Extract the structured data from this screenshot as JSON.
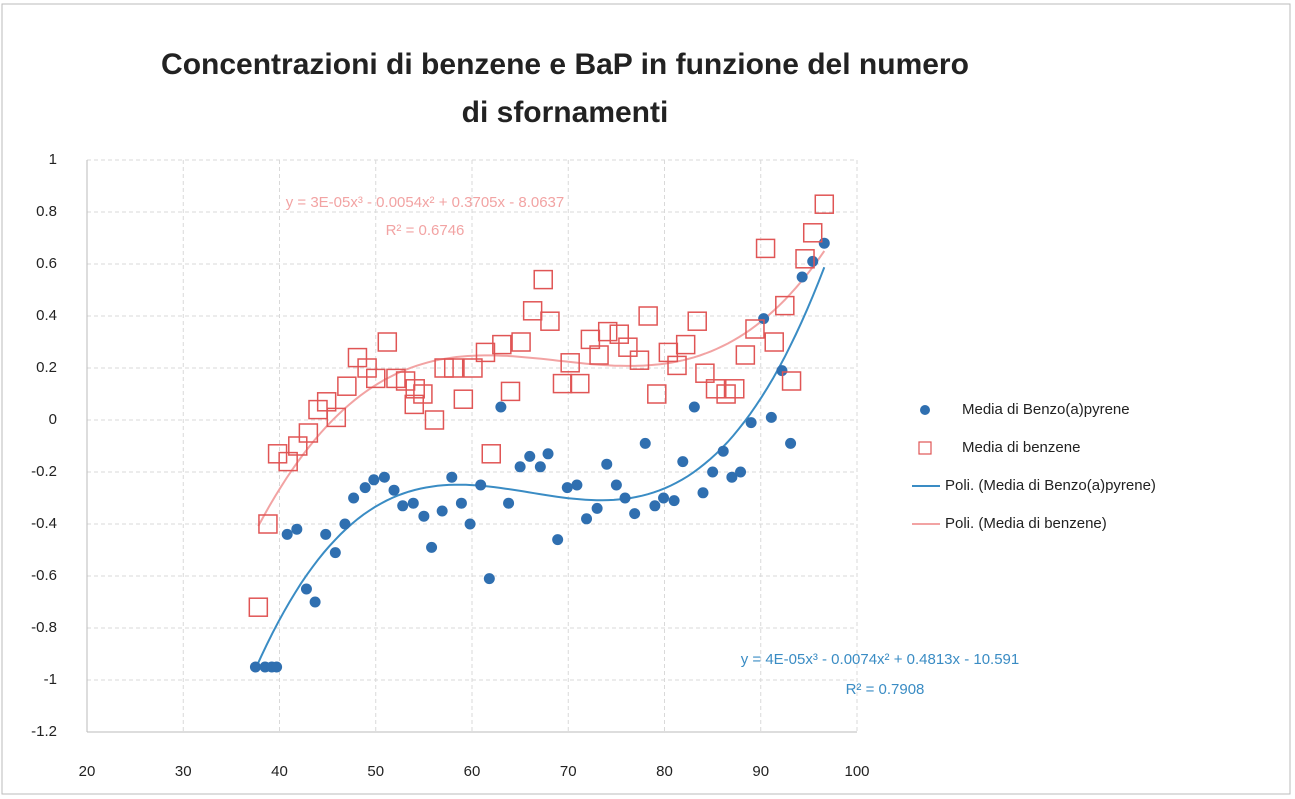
{
  "chart_data": {
    "type": "scatter",
    "title": [
      "Concentrazioni di benzene e BaP in funzione del numero",
      "di sfornamenti"
    ],
    "xlim": [
      20,
      100
    ],
    "xticks": [
      20,
      30,
      40,
      50,
      60,
      70,
      80,
      90,
      100
    ],
    "ylim": [
      -1.2,
      1
    ],
    "yticks": [
      -1.2,
      -1,
      -0.8,
      -0.6,
      -0.4,
      -0.2,
      0,
      0.2,
      0.4,
      0.6,
      0.8,
      1
    ],
    "grid": true,
    "legend": "right",
    "series": [
      {
        "name": "Media di Benzo(a)pyrene",
        "color": "#2f6fb0",
        "marker": "circle",
        "x": [
          37.5,
          38.5,
          39.2,
          39.7,
          40.8,
          41.8,
          42.8,
          43.7,
          44.8,
          45.8,
          46.8,
          47.7,
          48.9,
          49.8,
          50.9,
          51.9,
          52.8,
          53.9,
          55.0,
          55.8,
          56.9,
          57.9,
          58.9,
          59.8,
          60.9,
          61.8,
          63.0,
          63.8,
          65.0,
          66.0,
          67.1,
          67.9,
          68.9,
          69.9,
          70.9,
          71.9,
          73.0,
          74.0,
          75.0,
          75.9,
          76.9,
          78.0,
          79.0,
          79.9,
          81.0,
          81.9,
          83.1,
          84.0,
          85.0,
          86.1,
          87.0,
          87.9,
          89.0,
          90.3,
          91.1,
          92.2,
          93.1,
          94.3,
          95.4,
          96.6
        ],
        "values": [
          -0.95,
          -0.95,
          -0.95,
          -0.95,
          -0.44,
          -0.42,
          -0.65,
          -0.7,
          -0.44,
          -0.51,
          -0.4,
          -0.3,
          -0.26,
          -0.23,
          -0.22,
          -0.27,
          -0.33,
          -0.32,
          -0.37,
          -0.49,
          -0.35,
          -0.22,
          -0.32,
          -0.4,
          -0.25,
          -0.61,
          0.05,
          -0.32,
          -0.18,
          -0.14,
          -0.18,
          -0.13,
          -0.46,
          -0.26,
          -0.25,
          -0.38,
          -0.34,
          -0.17,
          -0.25,
          -0.3,
          -0.36,
          -0.09,
          -0.33,
          -0.3,
          -0.31,
          -0.16,
          0.05,
          -0.28,
          -0.2,
          -0.12,
          -0.22,
          -0.2,
          -0.01,
          0.39,
          0.01,
          0.19,
          -0.09,
          0.55,
          0.61,
          0.68
        ]
      },
      {
        "name": "Media di benzene",
        "color": "#e05555",
        "marker": "square",
        "x": [
          37.8,
          38.8,
          39.8,
          40.9,
          41.9,
          43.0,
          44.0,
          44.9,
          45.9,
          47.0,
          48.1,
          49.1,
          50.0,
          51.2,
          52.1,
          53.1,
          54.1,
          54.9,
          54.0,
          56.1,
          57.1,
          58.1,
          59.1,
          60.1,
          61.4,
          62.0,
          63.1,
          64.0,
          65.1,
          66.3,
          67.4,
          68.1,
          69.4,
          70.2,
          71.2,
          72.3,
          73.2,
          74.1,
          75.3,
          76.2,
          77.4,
          78.3,
          79.2,
          80.4,
          81.3,
          82.2,
          83.4,
          84.2,
          85.3,
          86.4,
          87.3,
          88.4,
          89.4,
          90.5,
          91.4,
          92.5,
          93.2,
          94.6,
          95.4,
          96.6
        ],
        "values": [
          -0.72,
          -0.4,
          -0.13,
          -0.16,
          -0.1,
          -0.05,
          0.04,
          0.07,
          0.01,
          0.13,
          0.24,
          0.2,
          0.16,
          0.3,
          0.16,
          0.15,
          0.12,
          0.1,
          0.06,
          0.0,
          0.2,
          0.2,
          0.08,
          0.2,
          0.26,
          -0.13,
          0.29,
          0.11,
          0.3,
          0.42,
          0.54,
          0.38,
          0.14,
          0.22,
          0.14,
          0.31,
          0.25,
          0.34,
          0.33,
          0.28,
          0.23,
          0.4,
          0.1,
          0.26,
          0.21,
          0.29,
          0.38,
          0.18,
          0.12,
          0.1,
          0.12,
          0.25,
          0.35,
          0.66,
          0.3,
          0.44,
          0.15,
          0.62,
          0.72,
          0.83
        ]
      }
    ],
    "trendlines": [
      {
        "name": "Poli. (Media di Benzo(a)pyrene)",
        "color": "#3a8cc4",
        "series": 0,
        "equation": "y = 4E-05x³ - 0.0074x² + 0.4813x - 10.591",
        "r2": "R² = 0.7908"
      },
      {
        "name": "Poli. (Media di benzene)",
        "color": "#f2a3a3",
        "series": 1,
        "equation": "y = 3E-05x³ - 0.0054x² + 0.3705x - 8.0637",
        "r2": "R² = 0.6746"
      }
    ]
  }
}
